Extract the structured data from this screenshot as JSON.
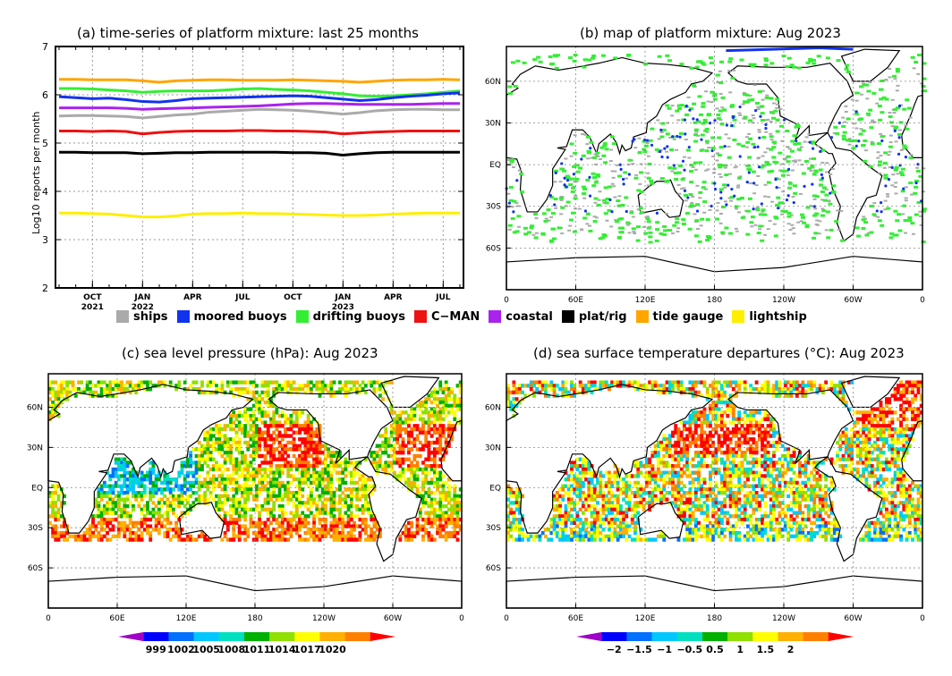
{
  "titles": {
    "a": "(a) time-series of platform mixture: last 25 months",
    "b": "(b) map of platform mixture: Aug 2023",
    "c": "(c) sea level pressure (hPa): Aug 2023",
    "d": "(d) sea surface temperature departures (°C): Aug 2023"
  },
  "chart_data": [
    {
      "type": "line",
      "title": "(a) time-series of platform mixture: last 25 months",
      "ylabel": "Log10 reports per month",
      "ylim": [
        2,
        7
      ],
      "yticks": [
        "2",
        "3",
        "4",
        "5",
        "6",
        "7"
      ],
      "x_tick_labels": [
        {
          "top": "OCT",
          "bottom": "2021"
        },
        {
          "top": "JAN",
          "bottom": "2022"
        },
        {
          "top": "APR",
          "bottom": ""
        },
        {
          "top": "JUL",
          "bottom": ""
        },
        {
          "top": "OCT",
          "bottom": ""
        },
        {
          "top": "JAN",
          "bottom": "2023"
        },
        {
          "top": "APR",
          "bottom": ""
        },
        {
          "top": "JUL",
          "bottom": ""
        }
      ],
      "x_months": [
        "Aug 2021",
        "Sep 2021",
        "Oct 2021",
        "Nov 2021",
        "Dec 2021",
        "Jan 2022",
        "Feb 2022",
        "Mar 2022",
        "Apr 2022",
        "May 2022",
        "Jun 2022",
        "Jul 2022",
        "Aug 2022",
        "Sep 2022",
        "Oct 2022",
        "Nov 2022",
        "Dec 2022",
        "Jan 2023",
        "Feb 2023",
        "Mar 2023",
        "Apr 2023",
        "May 2023",
        "Jun 2023",
        "Jul 2023",
        "Aug 2023"
      ],
      "grid": true,
      "series": [
        {
          "name": "tide gauge",
          "color": "#ffa500",
          "values": [
            6.32,
            6.32,
            6.31,
            6.31,
            6.31,
            6.29,
            6.26,
            6.29,
            6.3,
            6.31,
            6.31,
            6.3,
            6.3,
            6.3,
            6.31,
            6.3,
            6.29,
            6.28,
            6.26,
            6.28,
            6.3,
            6.31,
            6.31,
            6.32,
            6.31
          ]
        },
        {
          "name": "drifting buoys",
          "color": "#33ee33",
          "values": [
            6.13,
            6.13,
            6.12,
            6.1,
            6.08,
            6.05,
            6.07,
            6.08,
            6.08,
            6.08,
            6.1,
            6.12,
            6.13,
            6.11,
            6.1,
            6.08,
            6.05,
            6.02,
            5.98,
            5.97,
            5.98,
            6.0,
            6.02,
            6.05,
            6.08
          ]
        },
        {
          "name": "moored buoys",
          "color": "#1133ee",
          "values": [
            5.96,
            5.94,
            5.92,
            5.93,
            5.9,
            5.86,
            5.85,
            5.88,
            5.92,
            5.93,
            5.94,
            5.95,
            5.96,
            5.97,
            5.98,
            5.97,
            5.94,
            5.91,
            5.88,
            5.9,
            5.94,
            5.97,
            5.99,
            6.02,
            6.04
          ]
        },
        {
          "name": "coastal",
          "color": "#aa22ee",
          "values": [
            5.73,
            5.73,
            5.73,
            5.73,
            5.72,
            5.7,
            5.71,
            5.72,
            5.73,
            5.74,
            5.75,
            5.76,
            5.77,
            5.79,
            5.81,
            5.82,
            5.82,
            5.81,
            5.8,
            5.8,
            5.8,
            5.8,
            5.81,
            5.82,
            5.82
          ]
        },
        {
          "name": "ships",
          "color": "#aaaaaa",
          "values": [
            5.56,
            5.57,
            5.57,
            5.56,
            5.55,
            5.52,
            5.55,
            5.58,
            5.6,
            5.64,
            5.66,
            5.68,
            5.7,
            5.69,
            5.68,
            5.66,
            5.63,
            5.6,
            5.63,
            5.67,
            5.69,
            5.7,
            5.7,
            5.69,
            5.69
          ]
        },
        {
          "name": "C−MAN",
          "color": "#ee1111",
          "values": [
            5.25,
            5.25,
            5.24,
            5.25,
            5.24,
            5.19,
            5.22,
            5.24,
            5.25,
            5.25,
            5.25,
            5.26,
            5.26,
            5.25,
            5.25,
            5.24,
            5.23,
            5.19,
            5.21,
            5.23,
            5.24,
            5.25,
            5.25,
            5.25,
            5.25
          ]
        },
        {
          "name": "plat/rig",
          "color": "#000000",
          "values": [
            4.81,
            4.81,
            4.8,
            4.8,
            4.8,
            4.78,
            4.79,
            4.8,
            4.8,
            4.81,
            4.81,
            4.81,
            4.81,
            4.81,
            4.8,
            4.8,
            4.79,
            4.75,
            4.78,
            4.8,
            4.81,
            4.81,
            4.81,
            4.81,
            4.81
          ]
        },
        {
          "name": "lightship",
          "color": "#ffee00",
          "values": [
            3.55,
            3.55,
            3.54,
            3.53,
            3.5,
            3.47,
            3.47,
            3.49,
            3.53,
            3.54,
            3.54,
            3.55,
            3.54,
            3.54,
            3.53,
            3.52,
            3.51,
            3.5,
            3.5,
            3.51,
            3.53,
            3.54,
            3.55,
            3.55,
            3.55
          ]
        }
      ]
    },
    {
      "type": "heatmap",
      "title": "(b) map of platform mixture: Aug 2023",
      "lat_labels": [
        "60N",
        "30N",
        "EQ",
        "30S",
        "60S"
      ],
      "lon_labels": [
        "0",
        "60E",
        "120E",
        "180",
        "120W",
        "60W",
        "0"
      ],
      "layers": [
        "ships",
        "drifting buoys",
        "moored buoys"
      ]
    },
    {
      "type": "heatmap",
      "title": "(c) sea level pressure (hPa): Aug 2023",
      "lat_labels": [
        "60N",
        "30N",
        "EQ",
        "30S",
        "60S"
      ],
      "lon_labels": [
        "0",
        "60E",
        "120E",
        "180",
        "120W",
        "60W",
        "0"
      ],
      "colorbar": {
        "labels": [
          "999",
          "1002",
          "1005",
          "1008",
          "1011",
          "1014",
          "1017",
          "1020"
        ],
        "colors": [
          "#a000c8",
          "#0000ff",
          "#0070ff",
          "#00c8ff",
          "#00e0c0",
          "#00b000",
          "#90e000",
          "#ffff00",
          "#ffb000",
          "#ff8000",
          "#ff0000"
        ]
      }
    },
    {
      "type": "heatmap",
      "title": "(d) sea surface temperature departures (°C): Aug 2023",
      "lat_labels": [
        "60N",
        "30N",
        "EQ",
        "30S",
        "60S"
      ],
      "lon_labels": [
        "0",
        "60E",
        "120E",
        "180",
        "120W",
        "60W",
        "0"
      ],
      "colorbar": {
        "labels": [
          "−2",
          "−1.5",
          "−1",
          "−0.5",
          "0.5",
          "1",
          "1.5",
          "2"
        ],
        "colors": [
          "#a000c8",
          "#0000ff",
          "#0070ff",
          "#00c8ff",
          "#00e0c0",
          "#00b000",
          "#90e000",
          "#ffff00",
          "#ffb000",
          "#ff8000",
          "#ff0000"
        ]
      }
    }
  ],
  "legend": [
    {
      "label": "ships",
      "color": "#aaaaaa"
    },
    {
      "label": "moored buoys",
      "color": "#1133ee"
    },
    {
      "label": "drifting buoys",
      "color": "#33ee33"
    },
    {
      "label": "C−MAN",
      "color": "#ee1111"
    },
    {
      "label": "coastal",
      "color": "#aa22ee"
    },
    {
      "label": "plat/rig",
      "color": "#000000"
    },
    {
      "label": "tide gauge",
      "color": "#ffa500"
    },
    {
      "label": "lightship",
      "color": "#ffee00"
    }
  ]
}
